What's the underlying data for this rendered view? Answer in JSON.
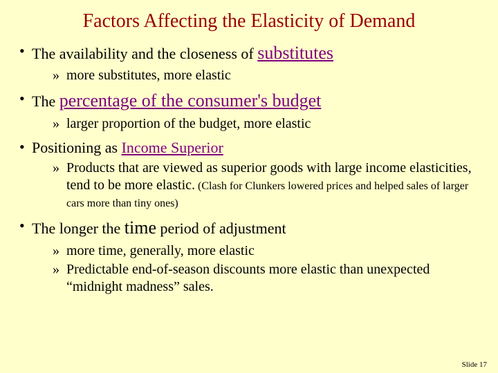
{
  "colors": {
    "background": "#ffffcc",
    "title": "#990000",
    "body": "#000000",
    "link": "#800080"
  },
  "typography": {
    "title_font": "Comic Sans MS",
    "body_font": "Times New Roman",
    "title_size_pt": 28,
    "main_size_pt": 22,
    "emphasis_size_pt": 26,
    "sub_size_pt": 20,
    "paren_size_pt": 16,
    "footer_size_pt": 11
  },
  "title": "Factors Affecting the Elasticity of Demand",
  "b1": {
    "pre": "The availability and the closeness of ",
    "em": "substitutes",
    "sub1": "more substitutes, more elastic"
  },
  "b2": {
    "pre": "The ",
    "em": "percentage of the consumer's budget",
    "sub1": "larger proportion of the budget, more elastic"
  },
  "b3": {
    "pre": "Positioning as ",
    "em": "Income Superior",
    "sub1_a": "Products that are viewed as superior goods with large income elasticities, tend to be more elastic.",
    "sub1_b": " (Clash for Clunkers lowered prices and helped sales of larger cars more than tiny ones)"
  },
  "b4": {
    "pre": "The longer the ",
    "em": "time",
    "post": " period of adjustment",
    "sub1": "more time, generally, more elastic",
    "sub2": "Predictable end-of-season discounts more elastic than unexpected “midnight madness” sales."
  },
  "footer": "Slide 17"
}
